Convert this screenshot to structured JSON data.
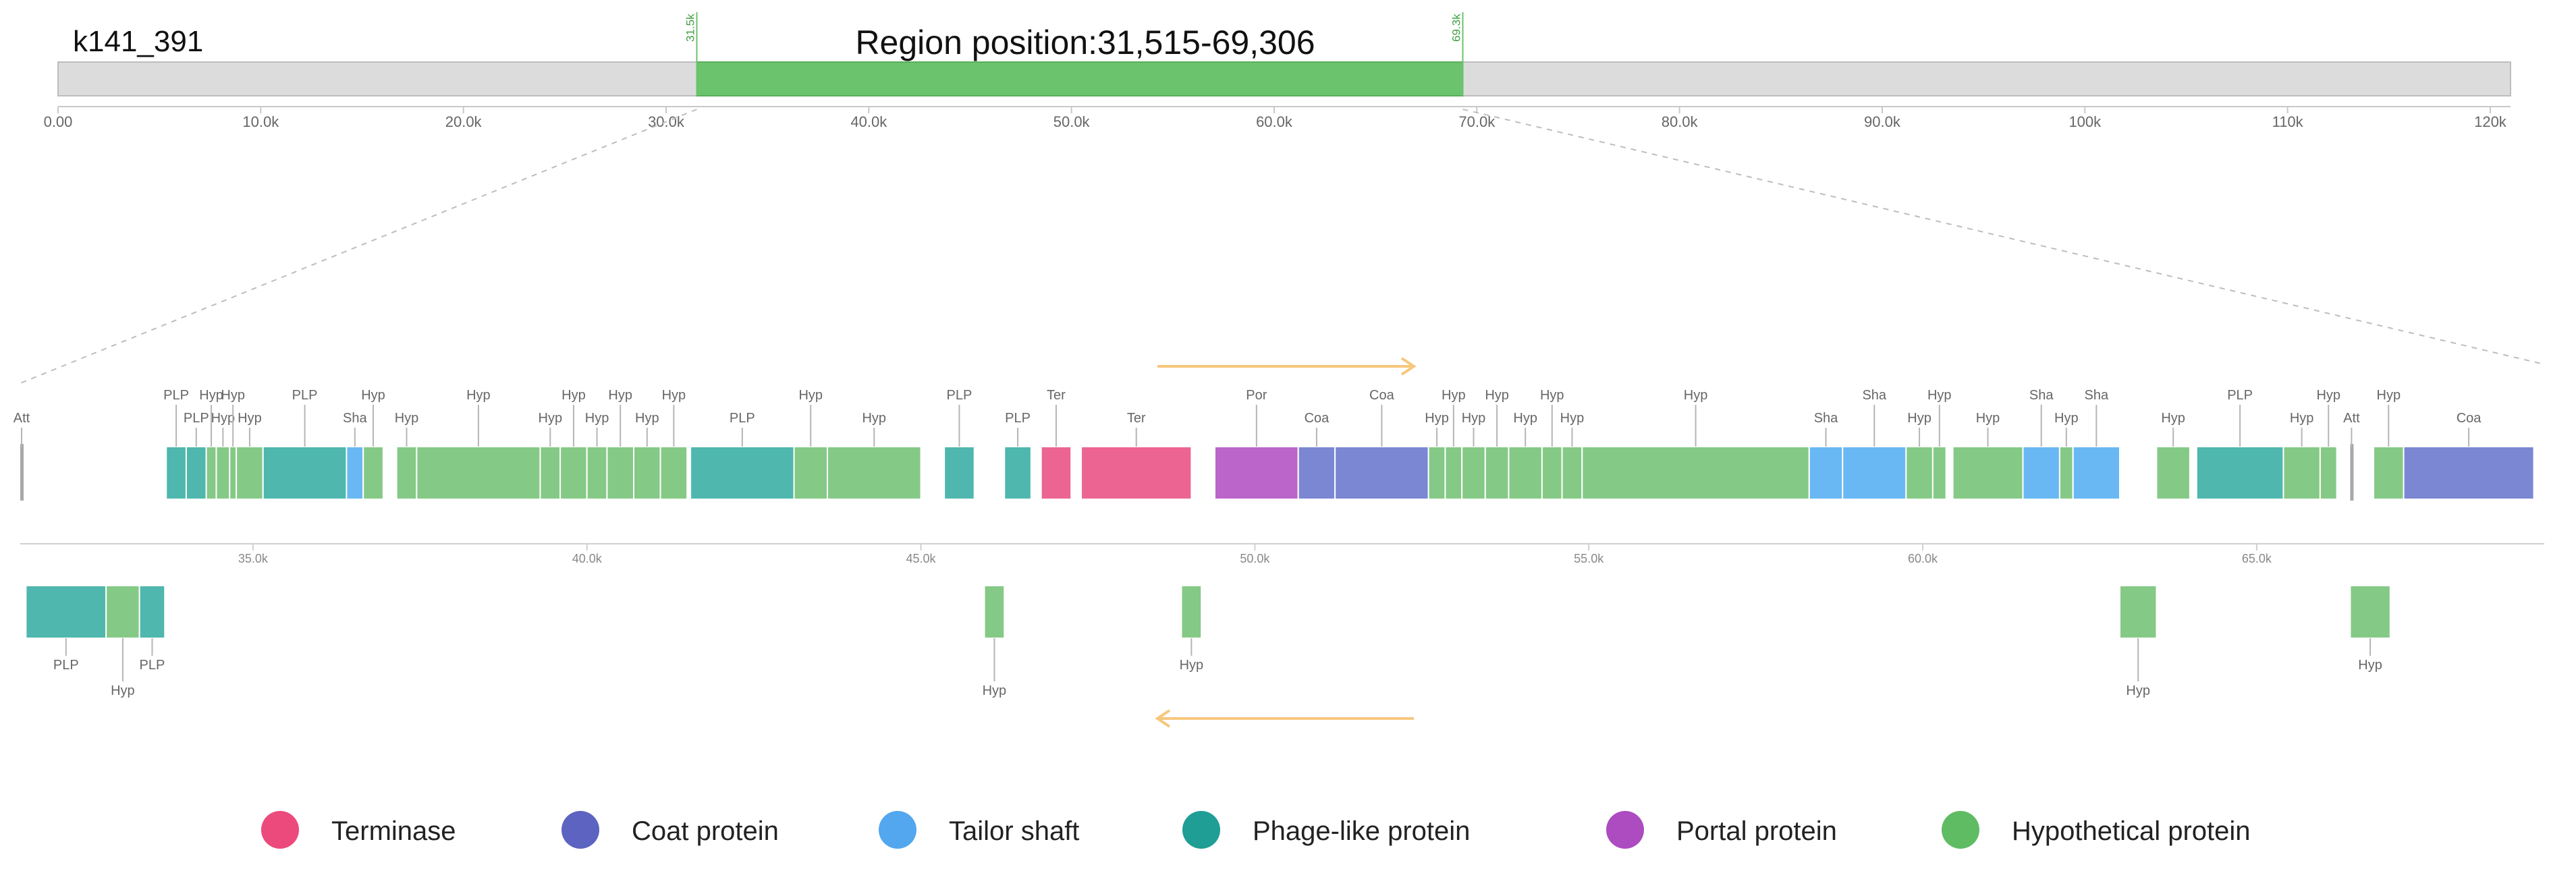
{
  "contig": {
    "name": "k141_391",
    "region_label": "Region position:31,515-69,306",
    "length": 121000,
    "region_start": 31515,
    "region_end": 69306,
    "region_start_marker": "31.5k",
    "region_end_marker": "69.3k",
    "ticks": [
      {
        "value": 0,
        "label": "0.00"
      },
      {
        "value": 10000,
        "label": "10.0k"
      },
      {
        "value": 20000,
        "label": "20.0k"
      },
      {
        "value": 30000,
        "label": "30.0k"
      },
      {
        "value": 40000,
        "label": "40.0k"
      },
      {
        "value": 50000,
        "label": "50.0k"
      },
      {
        "value": 60000,
        "label": "60.0k"
      },
      {
        "value": 70000,
        "label": "70.0k"
      },
      {
        "value": 80000,
        "label": "80.0k"
      },
      {
        "value": 90000,
        "label": "90.0k"
      },
      {
        "value": 100000,
        "label": "100k"
      },
      {
        "value": 110000,
        "label": "110k"
      },
      {
        "value": 120000,
        "label": "120k"
      }
    ]
  },
  "region": {
    "ticks": [
      {
        "value": 35000,
        "label": "35.0k"
      },
      {
        "value": 40000,
        "label": "40.0k"
      },
      {
        "value": 45000,
        "label": "45.0k"
      },
      {
        "value": 50000,
        "label": "50.0k"
      },
      {
        "value": 55000,
        "label": "55.0k"
      },
      {
        "value": 60000,
        "label": "60.0k"
      },
      {
        "value": 65000,
        "label": "65.0k"
      }
    ]
  },
  "legend": [
    {
      "category": "terminase",
      "label": "Terminase",
      "color": "#ec4a7c"
    },
    {
      "category": "coat",
      "label": "Coat protein",
      "color": "#5c63c0"
    },
    {
      "category": "shaft",
      "label": "Tailor shaft",
      "color": "#52a7ee"
    },
    {
      "category": "phage",
      "label": "Phage-like protein",
      "color": "#1e9e94"
    },
    {
      "category": "portal",
      "label": "Portal protein",
      "color": "#ac4cc0"
    },
    {
      "category": "hyp",
      "label": "Hypothetical protein",
      "color": "#5fbc63"
    }
  ],
  "gene_fill": {
    "terminase": "#ec6491",
    "coat": "#7b87d2",
    "shaft": "#69b8f4",
    "phage": "#4fb7ad",
    "portal": "#bb64c9",
    "hyp": "#85c986",
    "att": "#a8a8a8"
  },
  "forward_genes": [
    {
      "start": 31515,
      "end": 31580,
      "category": "att",
      "label": "Att",
      "row": 2
    },
    {
      "start": 33700,
      "end": 34000,
      "category": "phage",
      "label": "PLP",
      "row": 1
    },
    {
      "start": 34000,
      "end": 34300,
      "category": "phage",
      "label": "PLP",
      "row": 2
    },
    {
      "start": 34300,
      "end": 34450,
      "category": "hyp",
      "label": "Hyp",
      "row": 1
    },
    {
      "start": 34450,
      "end": 34650,
      "category": "hyp",
      "label": "Hyp",
      "row": 2
    },
    {
      "start": 34650,
      "end": 34750,
      "category": "hyp",
      "label": "Hyp",
      "row": 1
    },
    {
      "start": 34750,
      "end": 35150,
      "category": "hyp",
      "label": "Hyp",
      "row": 2
    },
    {
      "start": 35150,
      "end": 36400,
      "category": "phage",
      "label": "PLP",
      "row": 1
    },
    {
      "start": 36400,
      "end": 36650,
      "category": "shaft",
      "label": "Sha",
      "row": 2
    },
    {
      "start": 36650,
      "end": 36950,
      "category": "hyp",
      "label": "Hyp",
      "row": 1
    },
    {
      "start": 37150,
      "end": 37450,
      "category": "hyp",
      "label": "Hyp",
      "row": 2
    },
    {
      "start": 37450,
      "end": 39300,
      "category": "hyp",
      "label": "Hyp",
      "row": 1
    },
    {
      "start": 39300,
      "end": 39600,
      "category": "hyp",
      "label": "Hyp",
      "row": 2
    },
    {
      "start": 39600,
      "end": 40000,
      "category": "hyp",
      "label": "Hyp",
      "row": 1
    },
    {
      "start": 40000,
      "end": 40300,
      "category": "hyp",
      "label": "Hyp",
      "row": 2
    },
    {
      "start": 40300,
      "end": 40700,
      "category": "hyp",
      "label": "Hyp",
      "row": 1
    },
    {
      "start": 40700,
      "end": 41100,
      "category": "hyp",
      "label": "Hyp",
      "row": 2
    },
    {
      "start": 41100,
      "end": 41500,
      "category": "hyp",
      "label": "Hyp",
      "row": 1
    },
    {
      "start": 41550,
      "end": 43100,
      "category": "phage",
      "label": "PLP",
      "row": 2
    },
    {
      "start": 43100,
      "end": 43600,
      "category": "hyp",
      "label": "Hyp",
      "row": 1
    },
    {
      "start": 43600,
      "end": 45000,
      "category": "hyp",
      "label": "Hyp",
      "row": 2
    },
    {
      "start": 45350,
      "end": 45800,
      "category": "phage",
      "label": "PLP",
      "row": 1
    },
    {
      "start": 46250,
      "end": 46650,
      "category": "phage",
      "label": "PLP",
      "row": 2
    },
    {
      "start": 46800,
      "end": 47250,
      "category": "terminase",
      "label": "Ter",
      "row": 1
    },
    {
      "start": 47400,
      "end": 49050,
      "category": "terminase",
      "label": "Ter",
      "row": 2
    },
    {
      "start": 49400,
      "end": 50650,
      "category": "portal",
      "label": "Por",
      "row": 1
    },
    {
      "start": 50650,
      "end": 51200,
      "category": "coat",
      "label": "Coa",
      "row": 2
    },
    {
      "start": 51200,
      "end": 52600,
      "category": "coat",
      "label": "Coa",
      "row": 1
    },
    {
      "start": 52600,
      "end": 52850,
      "category": "hyp",
      "label": "Hyp",
      "row": 2
    },
    {
      "start": 52850,
      "end": 53100,
      "category": "hyp",
      "label": "Hyp",
      "row": 1
    },
    {
      "start": 53100,
      "end": 53450,
      "category": "hyp",
      "label": "Hyp",
      "row": 2
    },
    {
      "start": 53450,
      "end": 53800,
      "category": "hyp",
      "label": "Hyp",
      "row": 1
    },
    {
      "start": 53800,
      "end": 54300,
      "category": "hyp",
      "label": "Hyp",
      "row": 2
    },
    {
      "start": 54300,
      "end": 54600,
      "category": "hyp",
      "label": "Hyp",
      "row": 1
    },
    {
      "start": 54600,
      "end": 54900,
      "category": "hyp",
      "label": "Hyp",
      "row": 2
    },
    {
      "start": 54900,
      "end": 58300,
      "category": "hyp",
      "label": "Hyp",
      "row": 1
    },
    {
      "start": 58300,
      "end": 58800,
      "category": "shaft",
      "label": "Sha",
      "row": 2
    },
    {
      "start": 58800,
      "end": 59750,
      "category": "shaft",
      "label": "Sha",
      "row": 1
    },
    {
      "start": 59750,
      "end": 60150,
      "category": "hyp",
      "label": "Hyp",
      "row": 2
    },
    {
      "start": 60150,
      "end": 60350,
      "category": "hyp",
      "label": "Hyp",
      "row": 1
    },
    {
      "start": 60450,
      "end": 61500,
      "category": "hyp",
      "label": "Hyp",
      "row": 2
    },
    {
      "start": 61500,
      "end": 62050,
      "category": "shaft",
      "label": "Sha",
      "row": 1
    },
    {
      "start": 62050,
      "end": 62250,
      "category": "hyp",
      "label": "Hyp",
      "row": 2
    },
    {
      "start": 62250,
      "end": 62950,
      "category": "shaft",
      "label": "Sha",
      "row": 1
    },
    {
      "start": 63500,
      "end": 64000,
      "category": "hyp",
      "label": "Hyp",
      "row": 2
    },
    {
      "start": 64100,
      "end": 65400,
      "category": "phage",
      "label": "PLP",
      "row": 1
    },
    {
      "start": 65400,
      "end": 65950,
      "category": "hyp",
      "label": "Hyp",
      "row": 2
    },
    {
      "start": 65950,
      "end": 66200,
      "category": "hyp",
      "label": "Hyp",
      "row": 1
    },
    {
      "start": 66400,
      "end": 66450,
      "category": "att",
      "label": "Att",
      "row": 2
    },
    {
      "start": 66750,
      "end": 67200,
      "category": "hyp",
      "label": "Hyp",
      "row": 1
    },
    {
      "start": 67200,
      "end": 69150,
      "category": "coat",
      "label": "Coa",
      "row": 2
    }
  ],
  "reverse_genes": [
    {
      "start": 31600,
      "end": 32800,
      "category": "phage",
      "label": "PLP",
      "row": 1
    },
    {
      "start": 32800,
      "end": 33300,
      "category": "hyp",
      "label": "Hyp",
      "row": 2
    },
    {
      "start": 33300,
      "end": 33680,
      "category": "phage",
      "label": "PLP",
      "row": 1
    },
    {
      "start": 45950,
      "end": 46250,
      "category": "hyp",
      "label": "Hyp",
      "row": 2
    },
    {
      "start": 48900,
      "end": 49200,
      "category": "hyp",
      "label": "Hyp",
      "row": 1
    },
    {
      "start": 62950,
      "end": 63500,
      "category": "hyp",
      "label": "Hyp",
      "row": 2
    },
    {
      "start": 66400,
      "end": 67000,
      "category": "hyp",
      "label": "Hyp",
      "row": 1
    }
  ]
}
